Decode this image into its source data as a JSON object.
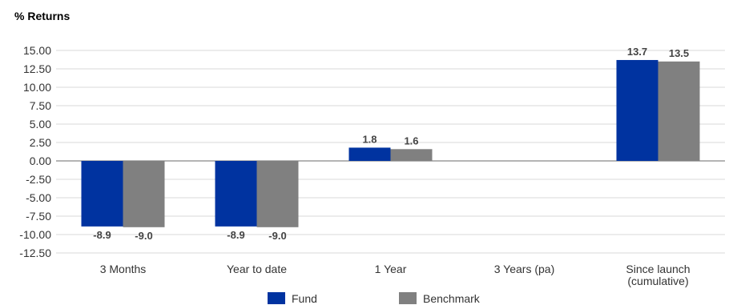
{
  "chart_data": {
    "type": "bar",
    "title": "% Returns",
    "categories": [
      "3 Months",
      "Year to date",
      "1 Year",
      "3 Years (pa)",
      "Since launch\n(cumulative)"
    ],
    "series": [
      {
        "name": "Fund",
        "values": [
          -8.9,
          -8.9,
          1.8,
          null,
          13.7
        ],
        "labels": [
          "-8.9",
          "-8.9",
          "1.8",
          "",
          "13.7"
        ]
      },
      {
        "name": "Benchmark",
        "values": [
          -9.0,
          -9.0,
          1.6,
          null,
          13.5
        ],
        "labels": [
          "-9.0",
          "-9.0",
          "1.6",
          "",
          "13.5"
        ]
      }
    ],
    "yticks": [
      "15.00",
      "12.50",
      "10.00",
      "7.50",
      "5.00",
      "2.50",
      "0.00",
      "-2.50",
      "-5.00",
      "-7.50",
      "-10.00",
      "-12.50"
    ],
    "ylim": [
      -12.5,
      15
    ],
    "grid": true,
    "legend_position": "bottom",
    "colors": {
      "Fund": "#0033A0",
      "Benchmark": "#808080",
      "grid": "#d9d9d9",
      "zero": "#888888"
    }
  }
}
